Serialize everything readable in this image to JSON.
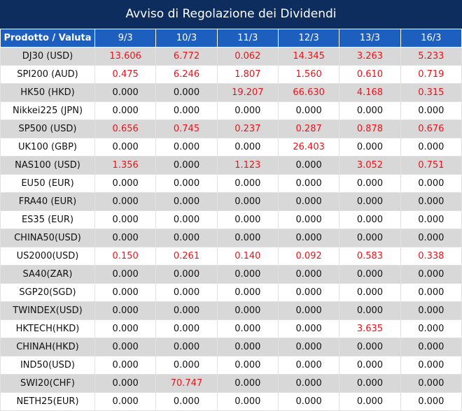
{
  "title": "Avviso di Regolazione dei Dividendi",
  "table": {
    "header": [
      "Prodotto / Valuta",
      "9/3",
      "10/3",
      "11/3",
      "12/3",
      "13/3",
      "16/3"
    ],
    "rows": [
      [
        "DJ30 (USD)",
        "13.606",
        "6.772",
        "0.062",
        "14.345",
        "3.263",
        "5.233"
      ],
      [
        "SPI200 (AUD)",
        "0.475",
        "6.246",
        "1.807",
        "1.560",
        "0.610",
        "0.719"
      ],
      [
        "HK50 (HKD)",
        "0.000",
        "0.000",
        "19.207",
        "66.630",
        "4.168",
        "0.315"
      ],
      [
        "Nikkei225 (JPN)",
        "0.000",
        "0.000",
        "0.000",
        "0.000",
        "0.000",
        "0.000"
      ],
      [
        "SP500 (USD)",
        "0.656",
        "0.745",
        "0.237",
        "0.287",
        "0.878",
        "0.676"
      ],
      [
        "UK100 (GBP)",
        "0.000",
        "0.000",
        "0.000",
        "26.403",
        "0.000",
        "0.000"
      ],
      [
        "NAS100 (USD)",
        "1.356",
        "0.000",
        "1.123",
        "0.000",
        "3.052",
        "0.751"
      ],
      [
        "EU50 (EUR)",
        "0.000",
        "0.000",
        "0.000",
        "0.000",
        "0.000",
        "0.000"
      ],
      [
        "FRA40 (EUR)",
        "0.000",
        "0.000",
        "0.000",
        "0.000",
        "0.000",
        "0.000"
      ],
      [
        "ES35 (EUR)",
        "0.000",
        "0.000",
        "0.000",
        "0.000",
        "0.000",
        "0.000"
      ],
      [
        "CHINA50(USD)",
        "0.000",
        "0.000",
        "0.000",
        "0.000",
        "0.000",
        "0.000"
      ],
      [
        "US2000(USD)",
        "0.150",
        "0.261",
        "0.140",
        "0.092",
        "0.583",
        "0.338"
      ],
      [
        "SA40(ZAR)",
        "0.000",
        "0.000",
        "0.000",
        "0.000",
        "0.000",
        "0.000"
      ],
      [
        "SGP20(SGD)",
        "0.000",
        "0.000",
        "0.000",
        "0.000",
        "0.000",
        "0.000"
      ],
      [
        "TWINDEX(USD)",
        "0.000",
        "0.000",
        "0.000",
        "0.000",
        "0.000",
        "0.000"
      ],
      [
        "HKTECH(HKD)",
        "0.000",
        "0.000",
        "0.000",
        "0.000",
        "3.635",
        "0.000"
      ],
      [
        "CHINAH(HKD)",
        "0.000",
        "0.000",
        "0.000",
        "0.000",
        "0.000",
        "0.000"
      ],
      [
        "IND50(USD)",
        "0.000",
        "0.000",
        "0.000",
        "0.000",
        "0.000",
        "0.000"
      ],
      [
        "SWI20(CHF)",
        "0.000",
        "70.747",
        "0.000",
        "0.000",
        "0.000",
        "0.000"
      ],
      [
        "NETH25(EUR)",
        "0.000",
        "0.000",
        "0.000",
        "0.000",
        "0.000",
        "0.000"
      ]
    ]
  }
}
